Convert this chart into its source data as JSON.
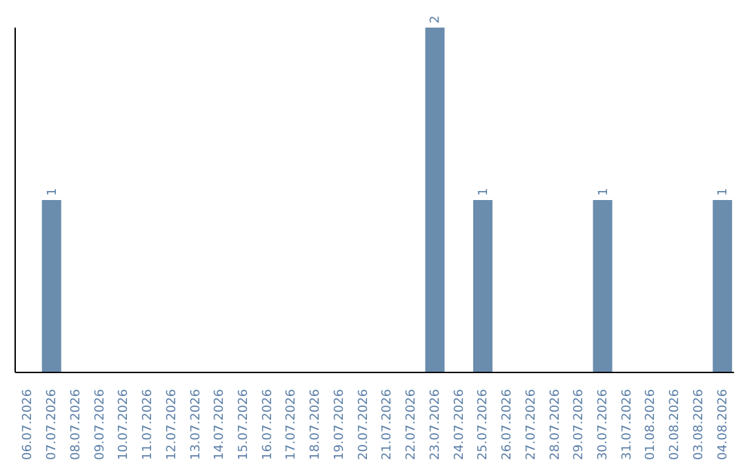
{
  "chart_data": {
    "type": "bar",
    "categories": [
      "06.07.2026",
      "07.07.2026",
      "08.07.2026",
      "09.07.2026",
      "10.07.2026",
      "11.07.2026",
      "12.07.2026",
      "13.07.2026",
      "14.07.2026",
      "15.07.2026",
      "16.07.2026",
      "17.07.2026",
      "18.07.2026",
      "19.07.2026",
      "20.07.2026",
      "21.07.2026",
      "22.07.2026",
      "23.07.2026",
      "24.07.2026",
      "25.07.2026",
      "26.07.2026",
      "27.07.2026",
      "28.07.2026",
      "29.07.2026",
      "30.07.2026",
      "31.07.2026",
      "01.08.2026",
      "02.08.2026",
      "03.08.2026",
      "04.08.2026"
    ],
    "values": [
      0,
      1,
      0,
      0,
      0,
      0,
      0,
      0,
      0,
      0,
      0,
      0,
      0,
      0,
      0,
      0,
      0,
      2,
      0,
      1,
      0,
      0,
      0,
      0,
      1,
      0,
      0,
      0,
      0,
      1
    ],
    "value_labels": [
      null,
      "1",
      null,
      null,
      null,
      null,
      null,
      null,
      null,
      null,
      null,
      null,
      null,
      null,
      null,
      null,
      null,
      "2",
      null,
      "1",
      null,
      null,
      null,
      null,
      "1",
      null,
      null,
      null,
      null,
      "1"
    ],
    "color": "#6a8cad",
    "grid": false,
    "legend": false
  }
}
